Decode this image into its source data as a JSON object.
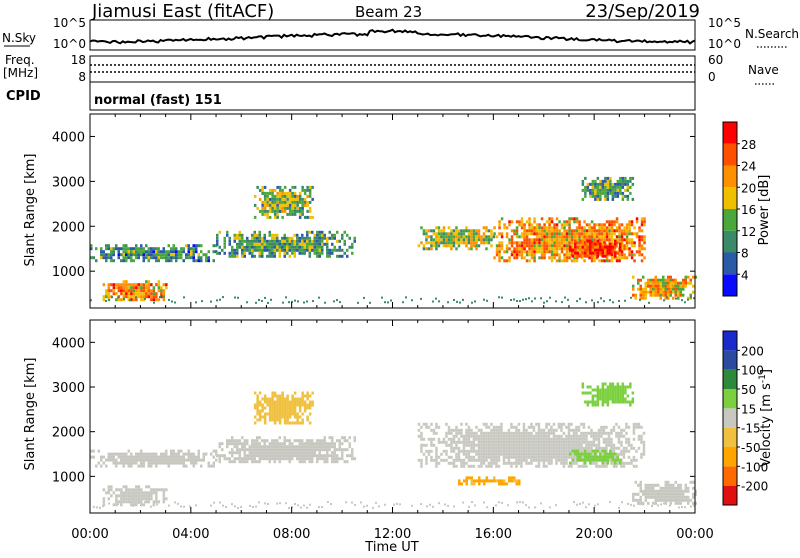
{
  "header": {
    "station": "Jiamusi East (fitACF)",
    "beam": "Beam 23",
    "date": "23/Sep/2019"
  },
  "nsky_panel": {
    "left_label": "N.Sky",
    "right_label": "N.Search",
    "left_ticks": [
      "10^5",
      "10^0"
    ],
    "right_ticks": [
      "10^5",
      "10^0"
    ]
  },
  "freq_panel": {
    "left_label_1": "Freq.",
    "left_label_2": "[MHz]",
    "left_ticks": [
      "18",
      "8"
    ],
    "right_label": "Nave",
    "right_ticks": [
      "60",
      "0"
    ]
  },
  "cpid": {
    "label": "CPID",
    "value": "normal (fast) 151"
  },
  "colors": {
    "power_scale": [
      "#0a0aff",
      "#2a5aa8",
      "#3a8a6a",
      "#4aa83a",
      "#f0c000",
      "#ff9000",
      "#ff5000",
      "#ff0000"
    ],
    "velocity_scale": [
      "#e01010",
      "#ff6a00",
      "#ffa500",
      "#f0c040",
      "#c8c8c0",
      "#7cd040",
      "#2e8a3a",
      "#2c4aa0",
      "#1a2acc"
    ]
  },
  "chart_data": [
    {
      "type": "heatmap",
      "title": "",
      "xlabel": "",
      "ylabel": "Slant Range [km]",
      "xlim": [
        "00:00",
        "00:00"
      ],
      "ylim": [
        180,
        4500
      ],
      "x_tick_labels": [],
      "y_ticks": [
        1000,
        2000,
        3000,
        4000
      ],
      "colorbar": {
        "label": "Power [dB]",
        "ticks": [
          4,
          8,
          12,
          16,
          20,
          24,
          28
        ],
        "range": [
          0,
          32
        ]
      },
      "regions": [
        {
          "t_start": 0.0,
          "t_end": 5.0,
          "r_start": 1250,
          "r_end": 1600,
          "value": 10
        },
        {
          "t_start": 0.5,
          "t_end": 3.0,
          "r_start": 350,
          "r_end": 800,
          "value": 22
        },
        {
          "t_start": 5.0,
          "t_end": 10.5,
          "r_start": 1300,
          "r_end": 1900,
          "value": 12
        },
        {
          "t_start": 6.5,
          "t_end": 8.8,
          "r_start": 2200,
          "r_end": 2900,
          "value": 14
        },
        {
          "t_start": 13.0,
          "t_end": 16.0,
          "r_start": 1500,
          "r_end": 2000,
          "value": 16
        },
        {
          "t_start": 16.0,
          "t_end": 22.0,
          "r_start": 1200,
          "r_end": 2200,
          "value": 22
        },
        {
          "t_start": 19.0,
          "t_end": 21.0,
          "r_start": 1300,
          "r_end": 1700,
          "value": 28
        },
        {
          "t_start": 21.5,
          "t_end": 24.0,
          "r_start": 400,
          "r_end": 900,
          "value": 20
        },
        {
          "t_start": 19.5,
          "t_end": 21.5,
          "r_start": 2600,
          "r_end": 3100,
          "value": 12
        }
      ]
    },
    {
      "type": "heatmap",
      "title": "",
      "xlabel": "Time UT",
      "ylabel": "Slant Range [km]",
      "xlim": [
        "00:00",
        "00:00"
      ],
      "ylim": [
        180,
        4500
      ],
      "x_tick_labels": [
        "00:00",
        "04:00",
        "08:00",
        "12:00",
        "16:00",
        "20:00",
        "00:00"
      ],
      "y_ticks": [
        1000,
        2000,
        3000,
        4000
      ],
      "colorbar": {
        "label": "Velocity [m s^-1]",
        "ticks": [
          200,
          100,
          50,
          15,
          -15,
          -50,
          -100,
          -200
        ]
      },
      "regions": [
        {
          "t_start": 0.0,
          "t_end": 5.0,
          "r_start": 1250,
          "r_end": 1600,
          "value": 0
        },
        {
          "t_start": 0.5,
          "t_end": 3.0,
          "r_start": 350,
          "r_end": 800,
          "value": 0
        },
        {
          "t_start": 5.0,
          "t_end": 10.5,
          "r_start": 1300,
          "r_end": 1900,
          "value": 0
        },
        {
          "t_start": 6.5,
          "t_end": 8.8,
          "r_start": 2200,
          "r_end": 2900,
          "value": -30
        },
        {
          "t_start": 13.0,
          "t_end": 22.0,
          "r_start": 1200,
          "r_end": 2200,
          "value": 0
        },
        {
          "t_start": 19.0,
          "t_end": 21.0,
          "r_start": 1300,
          "r_end": 1600,
          "value": 30
        },
        {
          "t_start": 14.5,
          "t_end": 17.0,
          "r_start": 850,
          "r_end": 1000,
          "value": -60
        },
        {
          "t_start": 21.5,
          "t_end": 24.0,
          "r_start": 400,
          "r_end": 900,
          "value": 0
        },
        {
          "t_start": 19.5,
          "t_end": 21.5,
          "r_start": 2600,
          "r_end": 3100,
          "value": 30
        }
      ]
    }
  ]
}
